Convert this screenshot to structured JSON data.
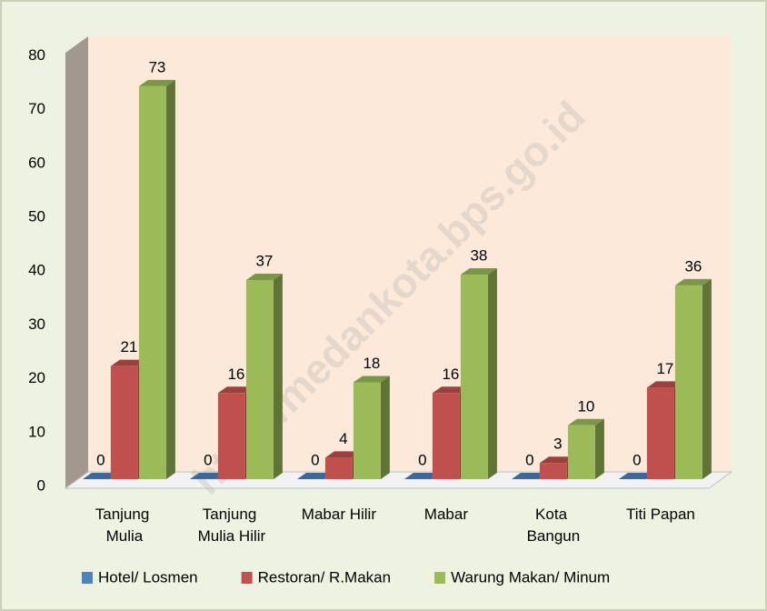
{
  "chart_data": {
    "type": "bar3d",
    "categories": [
      "Tanjung Mulia",
      "Tanjung Mulia Hilir",
      "Mabar Hilir",
      "Mabar",
      "Kota Bangun",
      "Titi Papan"
    ],
    "series": [
      {
        "name": "Hotel/ Losmen",
        "color": "#4f81bd",
        "values": [
          0,
          0,
          0,
          0,
          0,
          0
        ]
      },
      {
        "name": "Restoran/ R.Makan",
        "color": "#c0504d",
        "values": [
          21,
          16,
          4,
          16,
          3,
          17
        ]
      },
      {
        "name": "Warung Makan/ Minum",
        "color": "#9bbb59",
        "values": [
          73,
          37,
          18,
          38,
          10,
          36
        ]
      }
    ],
    "ylim": [
      0,
      80
    ],
    "yticks": [
      0,
      10,
      20,
      30,
      40,
      50,
      60,
      70,
      80
    ],
    "grid": false,
    "legend": "bottom",
    "watermark": "http://medankota.bps.go.id"
  }
}
